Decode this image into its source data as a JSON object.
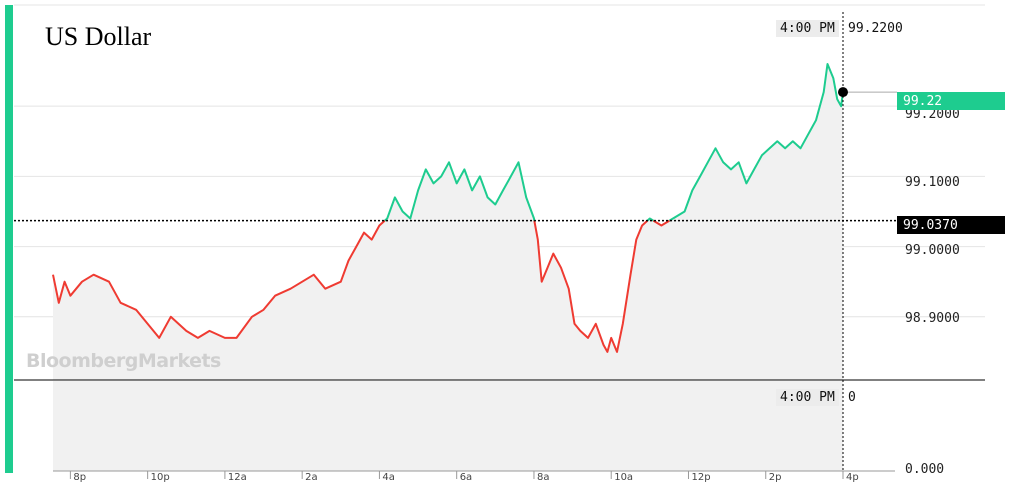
{
  "title": "US Dollar",
  "watermark": "BloombergMarkets",
  "crosshair": {
    "time_label": "4:00 PM",
    "price_value": "99.2200",
    "volume_value": "0"
  },
  "last_price_tag": "99.22",
  "reference_tag": "99.0370",
  "colors": {
    "up": "#1ecc8f",
    "down": "#ef3b32",
    "accent": "#1ecc8f"
  },
  "chart_data": {
    "type": "line",
    "title": "US Dollar",
    "reference_price": 99.037,
    "ylim": [
      98.81,
      99.28
    ],
    "y_ticks": [
      "99.2000",
      "99.1000",
      "99.0000",
      "98.9000"
    ],
    "y_tick_values": [
      99.2,
      99.1,
      99.0,
      98.9
    ],
    "volume_axis_label": "0.000",
    "x_ticks": [
      "8p",
      "10p",
      "12a",
      "2a",
      "4a",
      "6a",
      "8a",
      "10a",
      "12p",
      "2p",
      "4p"
    ],
    "x_tick_hours": [
      20,
      22,
      24,
      26,
      28,
      30,
      32,
      34,
      36,
      38,
      40
    ],
    "xlim_hours": [
      19.55,
      40.0
    ],
    "series": [
      {
        "x_hours": [
          19.55,
          19.7,
          19.85,
          20.0,
          20.3,
          20.6,
          21.0,
          21.3,
          21.7,
          22.0,
          22.3,
          22.6,
          23.0,
          23.3,
          23.6,
          24.0,
          24.3,
          24.7,
          25.0,
          25.3,
          25.7,
          26.0,
          26.3,
          26.6,
          27.0,
          27.2,
          27.4,
          27.6,
          27.8,
          28.0,
          28.2,
          28.4,
          28.6,
          28.8,
          29.0,
          29.2,
          29.4,
          29.6,
          29.8,
          30.0,
          30.2,
          30.4,
          30.6,
          30.8,
          31.0,
          31.2,
          31.4,
          31.6,
          31.8,
          32.0,
          32.1,
          32.2,
          32.35,
          32.5,
          32.7,
          32.9,
          33.05,
          33.2,
          33.4,
          33.6,
          33.8,
          33.9,
          34.0,
          34.15,
          34.3,
          34.5,
          34.65,
          34.8,
          35.0,
          35.3,
          35.6,
          35.9,
          36.1,
          36.3,
          36.5,
          36.7,
          36.9,
          37.1,
          37.3,
          37.5,
          37.7,
          37.9,
          38.1,
          38.3,
          38.5,
          38.7,
          38.9,
          39.1,
          39.3,
          39.5,
          39.6,
          39.75,
          39.85,
          39.95,
          40.0
        ],
        "y": [
          98.96,
          98.92,
          98.95,
          98.93,
          98.95,
          98.96,
          98.95,
          98.92,
          98.91,
          98.89,
          98.87,
          98.9,
          98.88,
          98.87,
          98.88,
          98.87,
          98.87,
          98.9,
          98.91,
          98.93,
          98.94,
          98.95,
          98.96,
          98.94,
          98.95,
          98.98,
          99.0,
          99.02,
          99.01,
          99.03,
          99.04,
          99.07,
          99.05,
          99.04,
          99.08,
          99.11,
          99.09,
          99.1,
          99.12,
          99.09,
          99.11,
          99.08,
          99.1,
          99.07,
          99.06,
          99.08,
          99.1,
          99.12,
          99.07,
          99.04,
          99.01,
          98.95,
          98.97,
          98.99,
          98.97,
          98.94,
          98.89,
          98.88,
          98.87,
          98.89,
          98.86,
          98.85,
          98.87,
          98.85,
          98.89,
          98.96,
          99.01,
          99.03,
          99.04,
          99.03,
          99.04,
          99.05,
          99.08,
          99.1,
          99.12,
          99.14,
          99.12,
          99.11,
          99.12,
          99.09,
          99.11,
          99.13,
          99.14,
          99.15,
          99.14,
          99.15,
          99.14,
          99.16,
          99.18,
          99.22,
          99.26,
          99.24,
          99.21,
          99.2,
          99.22
        ]
      }
    ],
    "volume": 0,
    "grid": true
  }
}
